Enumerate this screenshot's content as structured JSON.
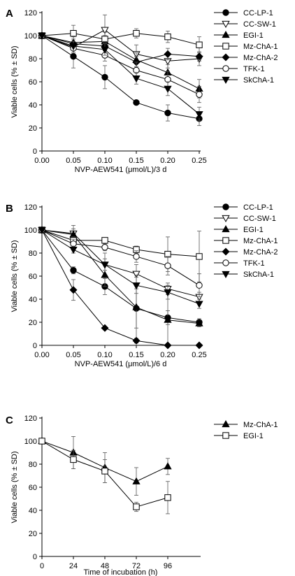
{
  "figure": {
    "panels": [
      "A",
      "B",
      "C"
    ]
  },
  "chart_data": [
    {
      "panel": "A",
      "type": "line",
      "xlabel": "NVP-AEW541 (μmol/L)/3 d",
      "ylabel": "Viable cells (% ± SD)",
      "x": [
        0,
        0.05,
        0.1,
        0.15,
        0.2,
        0.25
      ],
      "x_ticks": [
        "0.00",
        "0.05",
        "0.10",
        "0.15",
        "0.20",
        "0.25"
      ],
      "xlim": [
        0,
        0.25
      ],
      "ylim": [
        0,
        120
      ],
      "y_ticks": [
        0,
        20,
        40,
        60,
        80,
        100,
        120
      ],
      "grid": false,
      "legend": "right",
      "series": [
        {
          "name": "CC-LP-1",
          "marker": "circle-filled",
          "values": [
            100,
            82,
            64,
            42,
            33,
            28
          ],
          "err": [
            0,
            10,
            10,
            0,
            7,
            6
          ]
        },
        {
          "name": "CC-SW-1",
          "marker": "triangle-down-open",
          "values": [
            100,
            90,
            105,
            84,
            78,
            80
          ],
          "err": [
            0,
            5,
            13,
            8,
            6,
            6
          ]
        },
        {
          "name": "EGI-1",
          "marker": "triangle-up-filled",
          "values": [
            100,
            94,
            95,
            79,
            68,
            54
          ],
          "err": [
            0,
            5,
            8,
            6,
            7,
            8
          ]
        },
        {
          "name": "Mz-ChA-1",
          "marker": "square-open",
          "values": [
            100,
            102,
            97,
            102,
            99,
            92
          ],
          "err": [
            0,
            7,
            3,
            4,
            5,
            7
          ]
        },
        {
          "name": "Mz-ChA-2",
          "marker": "diamond-filled",
          "values": [
            100,
            93,
            91,
            77,
            84,
            82
          ],
          "err": [
            0,
            4,
            4,
            5,
            5,
            4
          ]
        },
        {
          "name": "TFK-1",
          "marker": "circle-open",
          "values": [
            100,
            89,
            83,
            70,
            62,
            49
          ],
          "err": [
            0,
            4,
            5,
            7,
            7,
            7
          ]
        },
        {
          "name": "SkChA-1",
          "marker": "triangle-down-filled",
          "values": [
            100,
            91,
            88,
            63,
            54,
            32
          ],
          "err": [
            0,
            4,
            5,
            5,
            6,
            6
          ]
        }
      ]
    },
    {
      "panel": "B",
      "type": "line",
      "xlabel": "NVP-AEW541 (μmol/L)/6 d",
      "ylabel": "Viable cells (% ± SD)",
      "x": [
        0,
        0.05,
        0.1,
        0.15,
        0.2,
        0.25
      ],
      "x_ticks": [
        "0.00",
        "0.05",
        "0.10",
        "0.15",
        "0.20",
        "0.25"
      ],
      "xlim": [
        0,
        0.25
      ],
      "ylim": [
        0,
        120
      ],
      "y_ticks": [
        0,
        20,
        40,
        60,
        80,
        100,
        120
      ],
      "grid": false,
      "legend": "right",
      "series": [
        {
          "name": "CC-LP-1",
          "marker": "circle-filled",
          "values": [
            100,
            65,
            51,
            32,
            24,
            20
          ],
          "err": [
            0,
            3,
            7,
            17,
            6,
            3
          ]
        },
        {
          "name": "CC-SW-1",
          "marker": "triangle-down-open",
          "values": [
            100,
            97,
            70,
            62,
            49,
            42
          ],
          "err": [
            0,
            7,
            10,
            8,
            5,
            4
          ]
        },
        {
          "name": "EGI-1",
          "marker": "triangle-up-filled",
          "values": [
            100,
            96,
            61,
            33,
            22,
            19
          ],
          "err": [
            0,
            5,
            10,
            28,
            24,
            3
          ]
        },
        {
          "name": "Mz-ChA-1",
          "marker": "square-open",
          "values": [
            100,
            91,
            91,
            83,
            79,
            77
          ],
          "err": [
            0,
            3,
            2,
            3,
            15,
            22
          ]
        },
        {
          "name": "Mz-ChA-2",
          "marker": "diamond-filled",
          "values": [
            100,
            48,
            15,
            4,
            0,
            0
          ],
          "err": [
            0,
            9,
            1,
            2,
            0,
            0
          ]
        },
        {
          "name": "TFK-1",
          "marker": "circle-open",
          "values": [
            100,
            88,
            85,
            77,
            69,
            52
          ],
          "err": [
            0,
            4,
            3,
            5,
            8,
            10
          ]
        },
        {
          "name": "SkChA-1",
          "marker": "triangle-down-filled",
          "values": [
            100,
            83,
            70,
            52,
            46,
            36
          ],
          "err": [
            0,
            3,
            5,
            7,
            6,
            4
          ]
        }
      ]
    },
    {
      "panel": "C",
      "type": "line",
      "xlabel": "Time of incubation (h)",
      "ylabel": "Viable cells (% ± SD)",
      "x": [
        0,
        24,
        48,
        72,
        96
      ],
      "x_ticks": [
        "0",
        "24",
        "48",
        "72",
        "96"
      ],
      "xlim": [
        0,
        120
      ],
      "ylim": [
        0,
        120
      ],
      "y_ticks": [
        0,
        20,
        40,
        60,
        80,
        100,
        120
      ],
      "grid": false,
      "legend": "right",
      "series": [
        {
          "name": "Mz-ChA-1",
          "marker": "triangle-up-filled",
          "values": [
            100,
            90,
            77,
            65,
            78
          ],
          "err": [
            0,
            14,
            13,
            12,
            7
          ]
        },
        {
          "name": "EGI-1",
          "marker": "square-open",
          "values": [
            100,
            84,
            74,
            43,
            51
          ],
          "err": [
            0,
            8,
            10,
            4,
            14
          ]
        }
      ]
    }
  ]
}
